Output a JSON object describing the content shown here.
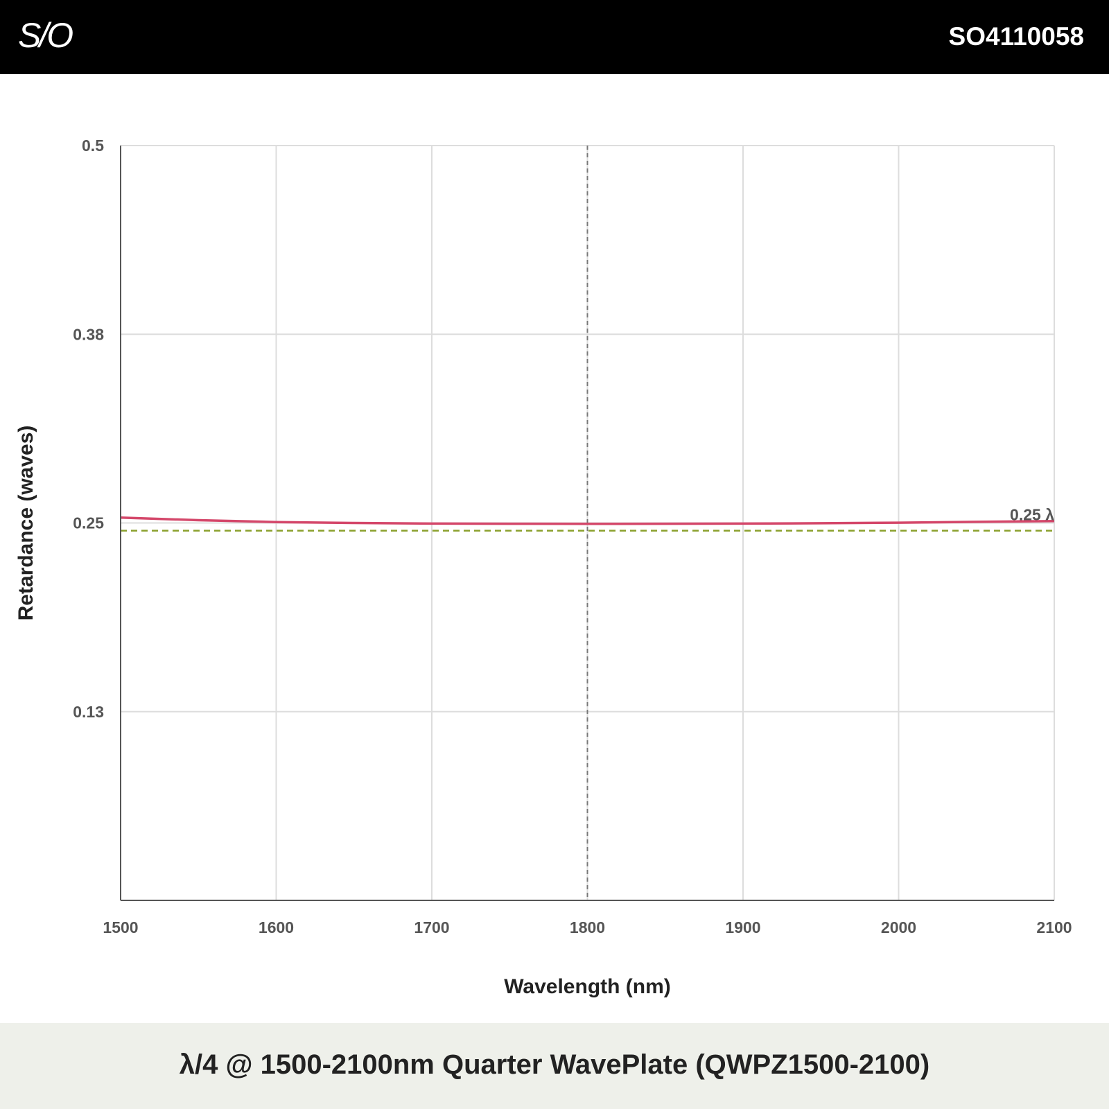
{
  "header": {
    "logo_text": "S/O",
    "product_code": "SO4110058"
  },
  "footer": {
    "title": "λ/4 @ 1500-2100nm Quarter WavePlate (QWPZ1500-2100)"
  },
  "colors": {
    "header_bg": "#000000",
    "footer_bg": "#eef0ea",
    "curve": "#d4476a",
    "reference": "#8aa02c",
    "center_line": "#777777",
    "grid": "#dddddd"
  },
  "chart_data": {
    "type": "line",
    "xlabel": "Wavelength (nm)",
    "ylabel": "Retardance (waves)",
    "xlim": [
      1500,
      2100
    ],
    "ylim": [
      0.01,
      0.5
    ],
    "x_ticks": [
      "1500",
      "1600",
      "1700",
      "1800",
      "1900",
      "2000",
      "2100"
    ],
    "x_tick_values": [
      1500,
      1600,
      1700,
      1800,
      1900,
      2000,
      2100
    ],
    "y_ticks": [
      "0.5",
      "0.38",
      "0.25",
      "0.13"
    ],
    "y_tick_values": [
      0.5,
      0.3775,
      0.255,
      0.1325
    ],
    "grid": true,
    "center_wavelength": 1800,
    "reference_value": 0.25,
    "reference_label": "0.25 λ",
    "series": [
      {
        "x": [
          1500,
          1550,
          1600,
          1650,
          1700,
          1750,
          1800,
          1850,
          1900,
          1950,
          2000,
          2050,
          2100
        ],
        "values": [
          0.2585,
          0.2568,
          0.2556,
          0.255,
          0.2546,
          0.2545,
          0.2544,
          0.2545,
          0.2546,
          0.2548,
          0.2552,
          0.2557,
          0.2562
        ]
      }
    ]
  }
}
